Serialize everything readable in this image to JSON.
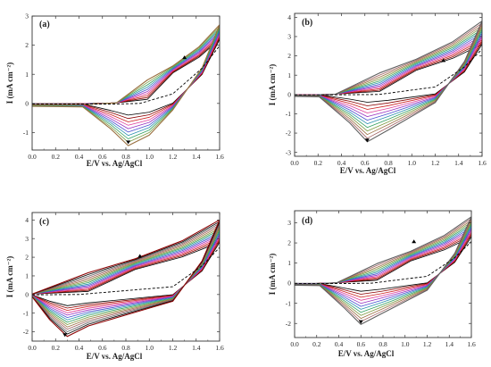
{
  "figure": {
    "xlabel": "E/V vs. Ag/AgCl",
    "ylabel": "I (mA cm⁻²)",
    "cycle_colors": [
      "#000000",
      "#8b0000",
      "#cc2020",
      "#e0409a",
      "#9a30c0",
      "#4a50d0",
      "#2a90b0",
      "#30a060",
      "#7a9a40",
      "#9a7040",
      "#a06060",
      "#606060"
    ],
    "dashed_color": "#000000"
  },
  "chart_data": [
    {
      "type": "line",
      "panel": "(a)",
      "xlabel": "E/V vs. Ag/AgCl",
      "ylabel": "I (mA cm⁻²)",
      "xlim": [
        0.0,
        1.6
      ],
      "ylim": [
        -1.6,
        3.0
      ],
      "xticks": [
        "0.0",
        "0.2",
        "0.4",
        "0.6",
        "0.8",
        "1.0",
        "1.2",
        "1.4",
        "1.6"
      ],
      "yticks": [
        "-1",
        "0",
        "1",
        "2",
        "3"
      ],
      "cycles": 10,
      "anodic_end": [
        1.6,
        2.7
      ],
      "anodic_end_min": 2.2,
      "cathodic_peak": {
        "x": 0.82,
        "y": -1.45
      },
      "cathodic_peak_min": -0.4,
      "onset": 0.72,
      "arrows": [
        {
          "x": 1.3,
          "y": 1.6,
          "dir": "up"
        },
        {
          "x": 0.82,
          "y": -1.35,
          "dir": "down"
        }
      ]
    },
    {
      "type": "line",
      "panel": "(b)",
      "xlabel": "E/V vs. Ag/AgCl",
      "ylabel": "I (mA cm⁻²)",
      "xlim": [
        0.0,
        1.6
      ],
      "ylim": [
        -3.2,
        4.2
      ],
      "xticks": [
        "0.0",
        "0.2",
        "0.4",
        "0.6",
        "0.8",
        "1.0",
        "1.2",
        "1.4",
        "1.6"
      ],
      "yticks": [
        "-3",
        "-2",
        "-1",
        "0",
        "1",
        "2",
        "3",
        "4"
      ],
      "cycles": 12,
      "anodic_end": [
        1.6,
        3.8
      ],
      "anodic_end_min": 2.6,
      "cathodic_peak": {
        "x": 0.62,
        "y": -2.45
      },
      "cathodic_peak_min": -0.4,
      "onset": 0.35,
      "arrows": [
        {
          "x": 1.27,
          "y": 1.8,
          "dir": "up"
        },
        {
          "x": 0.62,
          "y": -2.4,
          "dir": "down"
        }
      ]
    },
    {
      "type": "line",
      "panel": "(c)",
      "xlabel": "E/V vs. Ag/AgCl",
      "ylabel": "I (mA cm⁻²)",
      "xlim": [
        0.0,
        1.6
      ],
      "ylim": [
        -2.5,
        4.4
      ],
      "xticks": [
        "0.0",
        "0.2",
        "0.4",
        "0.6",
        "0.8",
        "1.0",
        "1.2",
        "1.4",
        "1.6"
      ],
      "yticks": [
        "-2",
        "-1",
        "0",
        "1",
        "2",
        "3",
        "4"
      ],
      "cycles": 14,
      "anodic_end": [
        1.6,
        4.0
      ],
      "anodic_end_min": 2.8,
      "cathodic_peak": {
        "x": 0.3,
        "y": -2.25
      },
      "cathodic_peak_min": -0.6,
      "onset": 0.0,
      "arrows": [
        {
          "x": 0.92,
          "y": 2.1,
          "dir": "up"
        },
        {
          "x": 0.28,
          "y": -2.2,
          "dir": "down"
        }
      ]
    },
    {
      "type": "line",
      "panel": "(d)",
      "xlabel": "E/V vs. Ag/AgCl",
      "ylabel": "I (mA cm⁻²)",
      "xlim": [
        0.0,
        1.6
      ],
      "ylim": [
        -2.7,
        3.6
      ],
      "xticks": [
        "0.0",
        "0.2",
        "0.4",
        "0.6",
        "0.8",
        "1.0",
        "1.2",
        "1.4",
        "1.6"
      ],
      "yticks": [
        "-2",
        "-1",
        "0",
        "1",
        "2",
        "3"
      ],
      "cycles": 12,
      "anodic_end": [
        1.6,
        3.3
      ],
      "anodic_end_min": 2.3,
      "cathodic_peak": {
        "x": 0.6,
        "y": -2.05
      },
      "cathodic_peak_min": -0.4,
      "onset": 0.38,
      "arrows": [
        {
          "x": 1.08,
          "y": 2.1,
          "dir": "up"
        },
        {
          "x": 0.6,
          "y": -1.95,
          "dir": "down"
        }
      ]
    }
  ]
}
